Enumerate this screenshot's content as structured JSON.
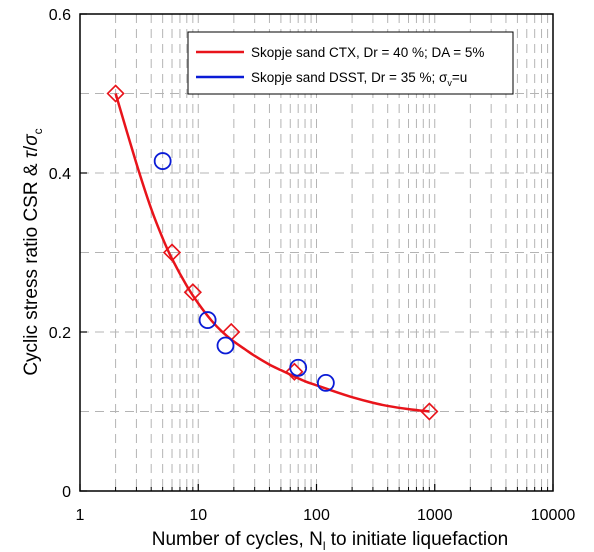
{
  "chart_data": {
    "type": "scatter",
    "xscale": "log",
    "xlim": [
      1,
      10000
    ],
    "ylim": [
      0,
      0.6
    ],
    "x_ticks": [
      1,
      10,
      100,
      1000,
      10000
    ],
    "x_tick_labels": [
      "1",
      "10",
      "100",
      "1000",
      "10000"
    ],
    "y_ticks": [
      0,
      0.2,
      0.4,
      0.6
    ],
    "y_tick_labels": [
      "0",
      "0.2",
      "0.4",
      "0.6"
    ],
    "grid": true,
    "legend_position": "top-right",
    "xlabel": {
      "prefix": "Number of cycles, N",
      "subscript": "l",
      "suffix": " to initiate liquefaction"
    },
    "ylabel": {
      "prefix": "Cyclic stress ratio CSR & ",
      "tau": "τ",
      "slash": "/",
      "sigma": "σ",
      "subscript": "c"
    },
    "series": [
      {
        "name": "Skopje sand CTX, Dr = 40 %; DA = 5%",
        "line_color": "#e8141b",
        "marker": "diamond",
        "marker_color": "#e8141b",
        "x": [
          2,
          6,
          9,
          19,
          65,
          900
        ],
        "y": [
          0.5,
          0.3,
          0.25,
          0.2,
          0.15,
          0.1
        ],
        "fit_curve": {
          "x": [
            2,
            3,
            4,
            5,
            6,
            8,
            10,
            13,
            16,
            20,
            25,
            30,
            40,
            50,
            65,
            80,
            100,
            150,
            200,
            300,
            400,
            600,
            900
          ],
          "y": [
            0.5,
            0.412,
            0.355,
            0.318,
            0.292,
            0.258,
            0.236,
            0.214,
            0.2,
            0.188,
            0.178,
            0.17,
            0.159,
            0.152,
            0.144,
            0.138,
            0.133,
            0.124,
            0.118,
            0.111,
            0.107,
            0.103,
            0.1
          ]
        }
      },
      {
        "name_prefix": "Skopje sand DSST, Dr = 35 %;  ",
        "name_sigma": "σ",
        "name_subscript": "v",
        "name_suffix": "=u",
        "line_color": "#0a1bd6",
        "marker": "circle",
        "marker_color": "#0a1bd6",
        "x": [
          5,
          12,
          17,
          70,
          120
        ],
        "y": [
          0.415,
          0.215,
          0.183,
          0.155,
          0.136
        ]
      }
    ]
  }
}
